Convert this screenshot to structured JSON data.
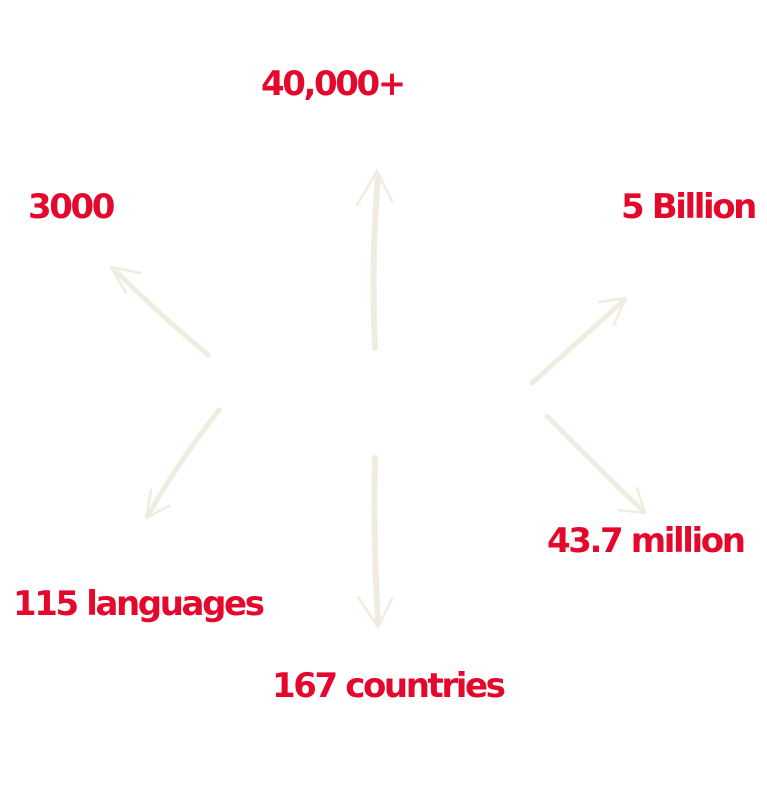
{
  "colors": {
    "stat_text": "#e4082c",
    "arrow": "#efece0"
  },
  "stats": {
    "top": "40,000+",
    "top_left": "3000",
    "top_right": "5 Billion",
    "bottom_right": "43.7 million",
    "bottom_left": "115 languages",
    "bottom": "167 countries"
  }
}
